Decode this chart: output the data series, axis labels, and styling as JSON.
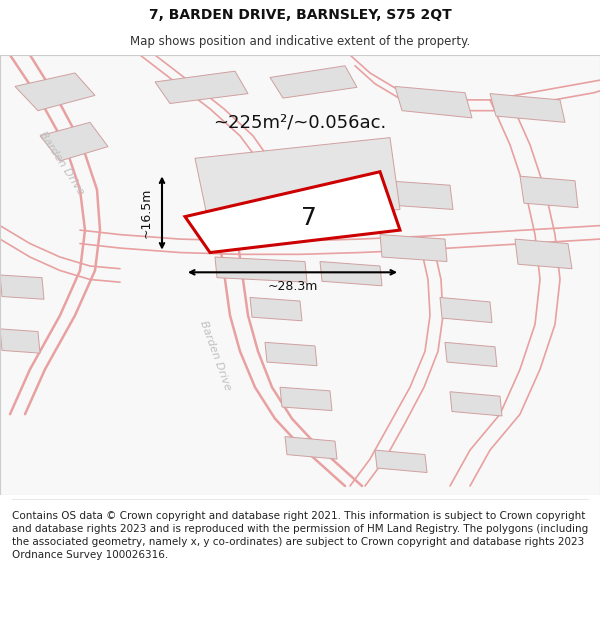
{
  "title": "7, BARDEN DRIVE, BARNSLEY, S75 2QT",
  "subtitle": "Map shows position and indicative extent of the property.",
  "area_text": "~225m²/~0.056ac.",
  "label_number": "7",
  "width_label": "~28.3m",
  "height_label": "~16.5m",
  "road_label_upper": "Barden Drive",
  "road_label_lower": "Barden Drive",
  "footer": "Contains OS data © Crown copyright and database right 2021. This information is subject to Crown copyright and database rights 2023 and is reproduced with the permission of HM Land Registry. The polygons (including the associated geometry, namely x, y co-ordinates) are subject to Crown copyright and database rights 2023 Ordnance Survey 100026316.",
  "title_fontsize": 10,
  "subtitle_fontsize": 8.5,
  "footer_fontsize": 7.5,
  "road_color": "#e8a0a0",
  "building_fill": "#e0e0e0",
  "building_edge": "#d0a0a0",
  "plot_stroke": "#cc0000",
  "map_bg": "#f8f8f8",
  "white": "#ffffff",
  "black": "#111111",
  "gray_label": "#bbbbbb",
  "road_lw": 1.2,
  "plot_lw": 2.2
}
